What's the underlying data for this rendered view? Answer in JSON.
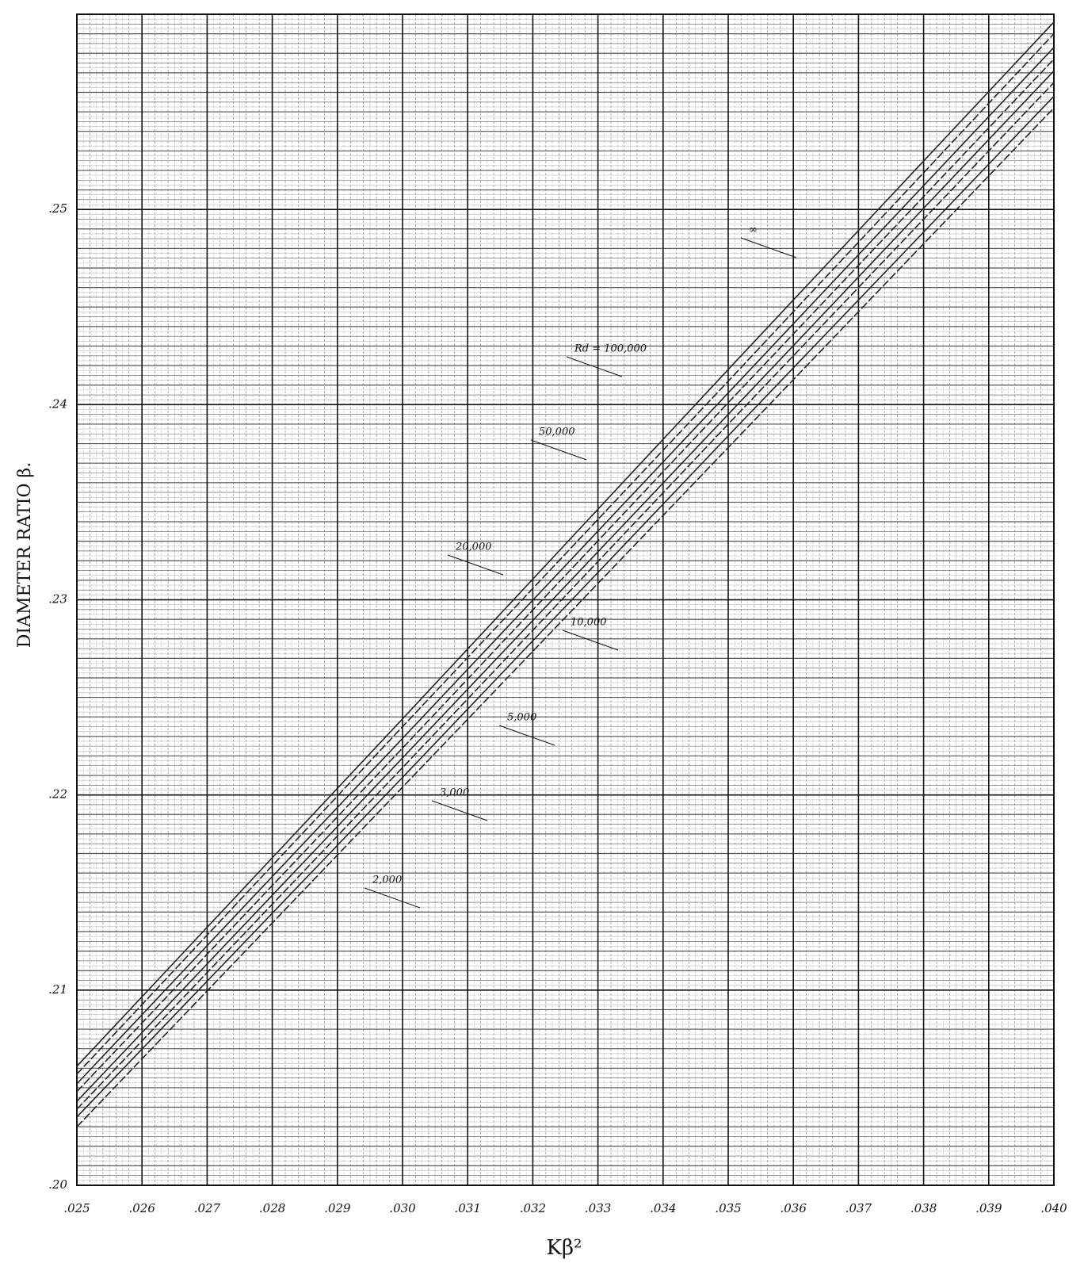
{
  "chart_data": {
    "type": "line",
    "x_label": "Kβ²",
    "y_label": "DIAMETER RATIO β.",
    "x": [
      0.025,
      0.03,
      0.035,
      0.04
    ],
    "series": [
      {
        "name": "∞",
        "color": "#222222",
        "values": [
          0.2061,
          0.2239,
          0.2418,
          0.2596
        ]
      },
      {
        "name": "Rd = 100,000",
        "color": "#222222",
        "values": [
          0.2057,
          0.2235,
          0.2412,
          0.259
        ]
      },
      {
        "name": "50,000",
        "color": "#222222",
        "values": [
          0.2052,
          0.2229,
          0.2406,
          0.2583
        ]
      },
      {
        "name": "20,000",
        "color": "#222222",
        "values": [
          0.2048,
          0.2224,
          0.2401,
          0.2577
        ]
      },
      {
        "name": "10,000",
        "color": "#222222",
        "values": [
          0.2043,
          0.2219,
          0.2395,
          0.2571
        ]
      },
      {
        "name": "5,000",
        "color": "#222222",
        "values": [
          0.2039,
          0.2214,
          0.239,
          0.2565
        ]
      },
      {
        "name": "3,000",
        "color": "#222222",
        "values": [
          0.2035,
          0.2209,
          0.2384,
          0.2558
        ]
      },
      {
        "name": "2,000",
        "color": "#222222",
        "values": [
          0.203,
          0.2204,
          0.2378,
          0.2552
        ]
      }
    ],
    "xlim": [
      0.025,
      0.04
    ],
    "ylim": [
      0.2,
      0.26
    ],
    "xticks": [
      {
        "value": 0.025,
        "label": ".025"
      },
      {
        "value": 0.026,
        "label": ".026"
      },
      {
        "value": 0.027,
        "label": ".027"
      },
      {
        "value": 0.028,
        "label": ".028"
      },
      {
        "value": 0.029,
        "label": ".029"
      },
      {
        "value": 0.03,
        "label": ".030"
      },
      {
        "value": 0.031,
        "label": ".031"
      },
      {
        "value": 0.032,
        "label": ".032"
      },
      {
        "value": 0.033,
        "label": ".033"
      },
      {
        "value": 0.034,
        "label": ".034"
      },
      {
        "value": 0.035,
        "label": ".035"
      },
      {
        "value": 0.036,
        "label": ".036"
      },
      {
        "value": 0.037,
        "label": ".037"
      },
      {
        "value": 0.038,
        "label": ".038"
      },
      {
        "value": 0.039,
        "label": ".039"
      },
      {
        "value": 0.04,
        "label": ".040"
      }
    ],
    "yticks": [
      {
        "value": 0.2,
        "label": ".20"
      },
      {
        "value": 0.21,
        "label": ".21"
      },
      {
        "value": 0.22,
        "label": ".22"
      },
      {
        "value": 0.23,
        "label": ".23"
      },
      {
        "value": 0.24,
        "label": ".24"
      },
      {
        "value": 0.25,
        "label": ".25"
      }
    ],
    "grid": true
  }
}
